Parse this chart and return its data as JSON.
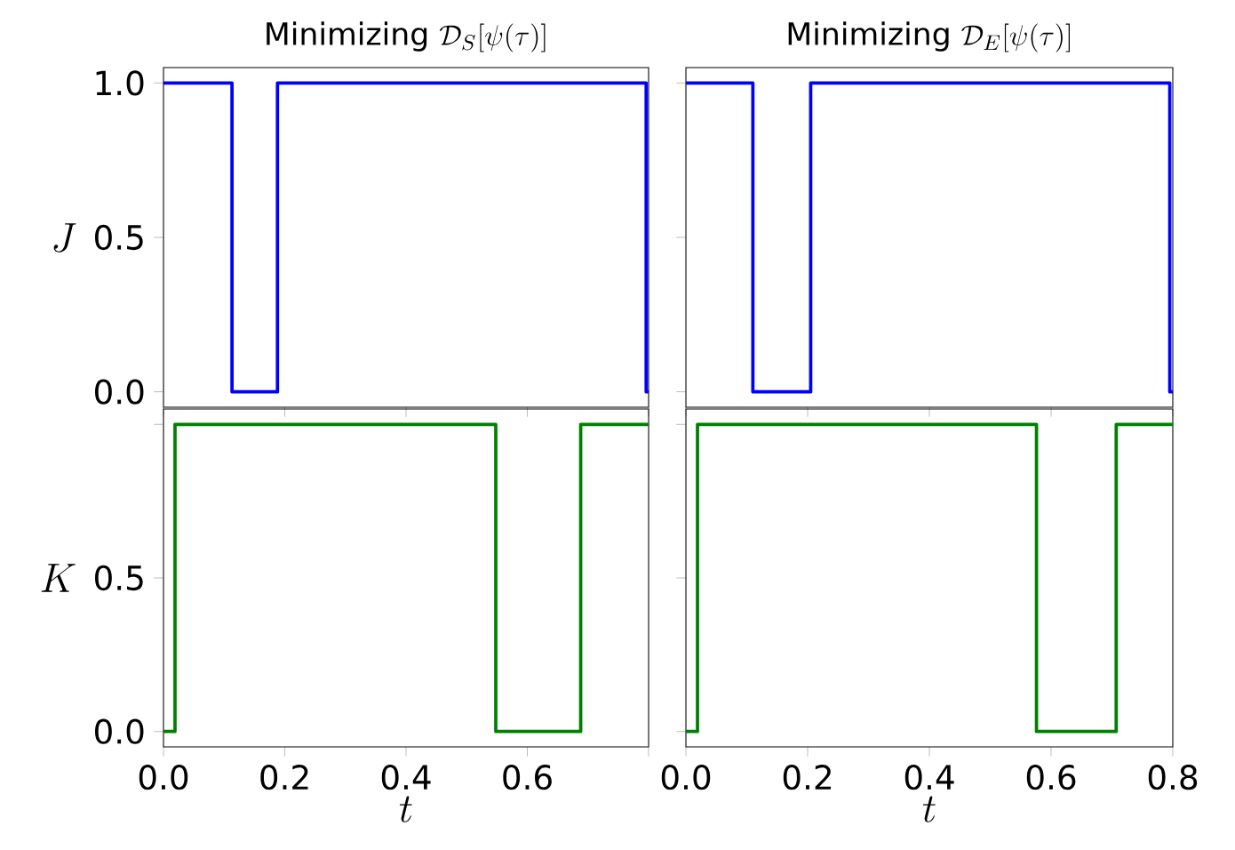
{
  "chart_data": [
    {
      "type": "step",
      "title": "\\mathrm{Minimizing}\\ \\mathcal{D}_S[\\psi(\\tau)]",
      "ylabel": "J",
      "x": [
        0,
        0.113,
        0.188,
        0.796,
        0.8
      ],
      "values": [
        1,
        0,
        1,
        0,
        0
      ],
      "color": "#0000ff",
      "xlim": [
        0,
        0.8
      ],
      "ylim": [
        -0.05,
        1.05
      ],
      "xticks": [
        0,
        0.2,
        0.4,
        0.6,
        0.8
      ],
      "yticks": [
        {
          "value": 0,
          "label": "0.0"
        },
        {
          "value": 0.5,
          "label": "0.5"
        },
        {
          "value": 1,
          "label": "1.0"
        }
      ],
      "tick_labels": "y"
    },
    {
      "type": "step",
      "title": "\\mathrm{Minimizing}\\ \\mathcal{D}_E[\\psi(\\tau)]",
      "x": [
        0,
        0.11,
        0.205,
        0.795,
        0.8
      ],
      "values": [
        1,
        0,
        1,
        0,
        0
      ],
      "color": "#0000ff",
      "xlim": [
        0,
        0.8
      ],
      "ylim": [
        -0.05,
        1.05
      ],
      "xticks": [
        0,
        0.2,
        0.4,
        0.6,
        0.8
      ],
      "yticks": [
        0,
        0.5,
        1
      ],
      "tick_labels": false
    },
    {
      "type": "step",
      "xlabel": "t",
      "ylabel": "K",
      "x": [
        0,
        0.019,
        0.548,
        0.688,
        0.8
      ],
      "values": [
        0,
        1,
        0,
        1,
        1
      ],
      "color": "#008000",
      "xlim": [
        0,
        0.8
      ],
      "ylim": [
        -0.05,
        1.05
      ],
      "xticks": [
        {
          "value": 0,
          "label": "0.0"
        },
        {
          "value": 0.2,
          "label": "0.2"
        },
        {
          "value": 0.4,
          "label": "0.4"
        },
        {
          "value": 0.6,
          "label": "0.6"
        },
        {
          "value": 0.8,
          "label": null
        }
      ],
      "yticks": [
        {
          "value": 0,
          "label": "0.0"
        },
        {
          "value": 0.5,
          "label": "0.5"
        },
        {
          "value": 1,
          "label": null
        }
      ]
    },
    {
      "type": "step",
      "xlabel": "t",
      "x": [
        0,
        0.019,
        0.576,
        0.707,
        0.8
      ],
      "values": [
        0,
        1,
        0,
        1,
        1
      ],
      "color": "#008000",
      "xlim": [
        0,
        0.8
      ],
      "ylim": [
        -0.05,
        1.05
      ],
      "xticks": [
        {
          "value": 0,
          "label": "0.0"
        },
        {
          "value": 0.2,
          "label": "0.2"
        },
        {
          "value": 0.4,
          "label": "0.4"
        },
        {
          "value": 0.6,
          "label": "0.6"
        },
        {
          "value": 0.8,
          "label": "0.8"
        }
      ],
      "yticks": [
        0,
        0.5,
        1
      ],
      "tick_labels": "x"
    }
  ]
}
